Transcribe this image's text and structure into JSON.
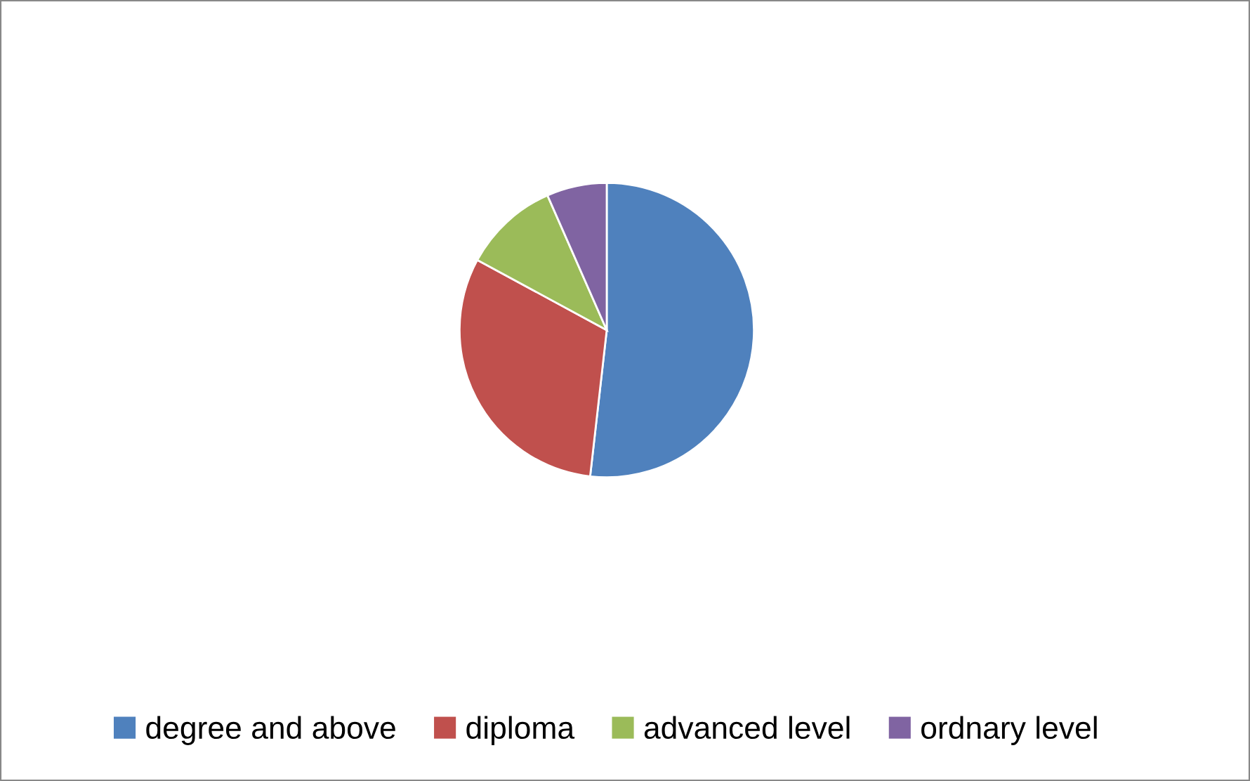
{
  "chart_data": {
    "type": "pie",
    "categories": [
      "degree and above",
      "diploma",
      "advanced level",
      "ordnary level"
    ],
    "values": [
      51.8,
      31.1,
      10.5,
      6.6
    ],
    "colors": [
      "#4f81bd",
      "#c0504d",
      "#9bbb59",
      "#8064a2"
    ],
    "legend": "bottom"
  }
}
